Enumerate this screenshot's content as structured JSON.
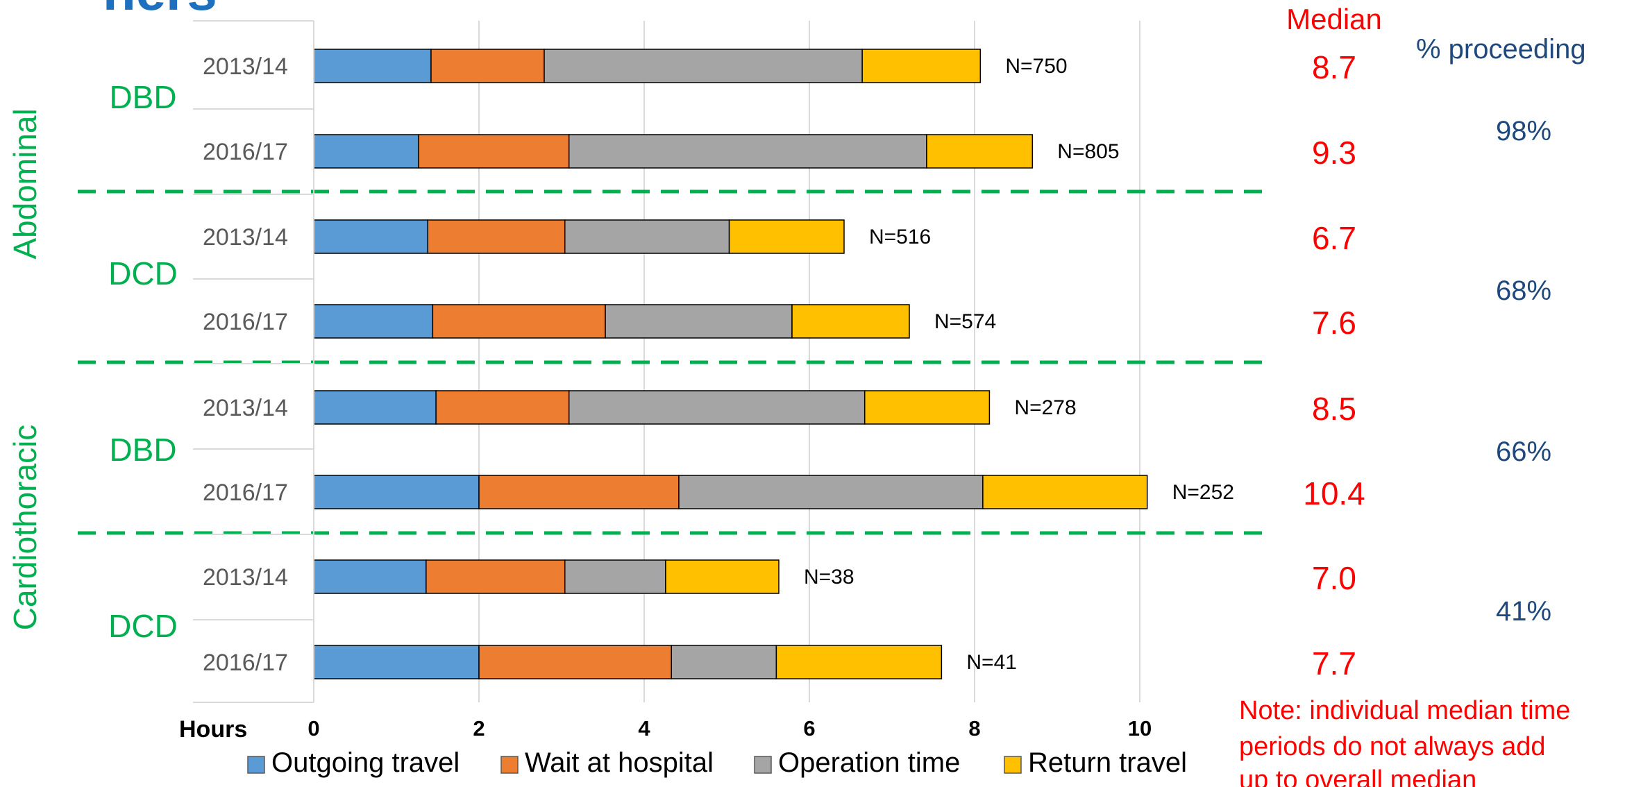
{
  "chart_data": {
    "type": "bar",
    "orientation": "horizontal",
    "stacked": true,
    "page_title_fragment": "ners",
    "xlabel": "Hours",
    "xlim": [
      0,
      10
    ],
    "xticks": [
      "0",
      "2",
      "4",
      "6",
      "8",
      "10"
    ],
    "grid": true,
    "legend_position": "bottom",
    "colors": {
      "outgoing": "#5b9bd5",
      "wait": "#ed7d31",
      "operation": "#a5a5a5",
      "return": "#ffc000",
      "divider": "#00b050",
      "median": "#ff0000",
      "proceeding": "#1f497d",
      "group_label": "#00b050"
    },
    "series": [
      {
        "name": "Outgoing travel"
      },
      {
        "name": "Wait at hospital"
      },
      {
        "name": "Operation time"
      },
      {
        "name": "Return travel"
      }
    ],
    "groups": [
      {
        "organ": "Abdominal",
        "subgroups": [
          {
            "label": "DBD",
            "proceeding": "98%",
            "rows": [
              {
                "period": "2013/14",
                "values": [
                  1.42,
                  1.37,
                  3.85,
                  1.43
                ],
                "n_label": "N=750",
                "median": "8.7"
              },
              {
                "period": "2016/17",
                "values": [
                  1.27,
                  1.82,
                  4.33,
                  1.28
                ],
                "n_label": "N=805",
                "median": "9.3"
              }
            ]
          },
          {
            "label": "DCD",
            "proceeding": "68%",
            "rows": [
              {
                "period": "2013/14",
                "values": [
                  1.38,
                  1.66,
                  1.99,
                  1.39
                ],
                "n_label": "N=516",
                "median": "6.7"
              },
              {
                "period": "2016/17",
                "values": [
                  1.44,
                  2.09,
                  2.26,
                  1.42
                ],
                "n_label": "N=574",
                "median": "7.6"
              }
            ]
          }
        ]
      },
      {
        "organ": "Cardiothoracic",
        "subgroups": [
          {
            "label": "DBD",
            "proceeding": "66%",
            "rows": [
              {
                "period": "2013/14",
                "values": [
                  1.48,
                  1.61,
                  3.58,
                  1.51
                ],
                "n_label": "N=278",
                "median": "8.5"
              },
              {
                "period": "2016/17",
                "values": [
                  2.0,
                  2.42,
                  3.68,
                  1.99
                ],
                "n_label": "N=252",
                "median": "10.4"
              }
            ]
          },
          {
            "label": "DCD",
            "proceeding": "41%",
            "rows": [
              {
                "period": "2013/14",
                "values": [
                  1.36,
                  1.68,
                  1.22,
                  1.37
                ],
                "n_label": "N=38",
                "median": "7.0"
              },
              {
                "period": "2016/17",
                "values": [
                  2.0,
                  2.33,
                  1.27,
                  2.0
                ],
                "n_label": "N=41",
                "median": "7.7"
              }
            ]
          }
        ]
      }
    ],
    "median_header": "Median",
    "proceeding_header": "% proceeding",
    "note_lines": [
      "Note: individual median time",
      "periods do not always add",
      "up to overall median"
    ]
  }
}
